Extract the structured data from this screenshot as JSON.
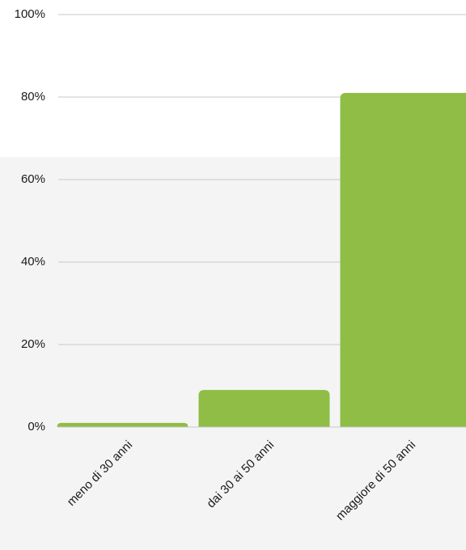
{
  "chart_data": {
    "type": "bar",
    "categories": [
      "meno di 30 anni",
      "dai 30 ai 50 anni",
      "maggiore di 50 anni"
    ],
    "values": [
      1,
      9,
      81
    ],
    "color": "#8fbd45",
    "ylim": [
      0,
      100
    ],
    "yticks": [
      {
        "value": 0,
        "label": "0%"
      },
      {
        "value": 20,
        "label": "20%"
      },
      {
        "value": 40,
        "label": "40%"
      },
      {
        "value": 60,
        "label": "60%"
      },
      {
        "value": 80,
        "label": "80%"
      },
      {
        "value": 100,
        "label": "100%"
      }
    ],
    "grid": true
  }
}
